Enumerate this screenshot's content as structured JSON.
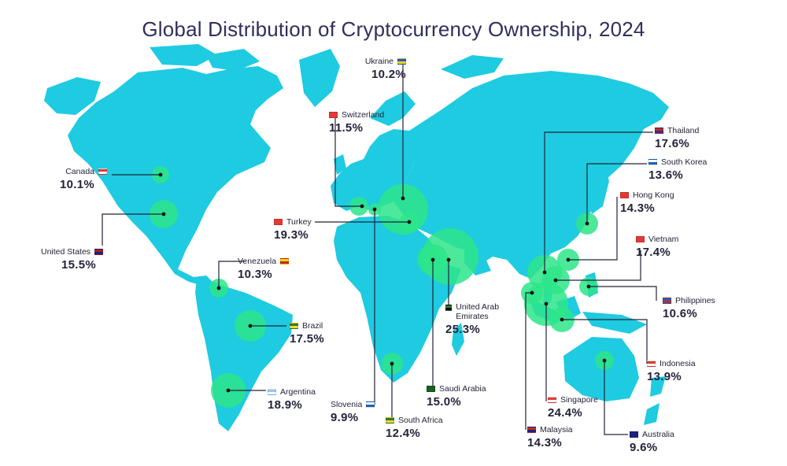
{
  "title": "Global Distribution of Cryptocurrency Ownership, 2024",
  "colors": {
    "land": "#1ecbe1",
    "bubble": "#2ee58a",
    "leader": "#23233a",
    "title": "#2f2f5e"
  },
  "countries": [
    {
      "id": "ukraine",
      "name": "Ukraine",
      "value": "10.2%",
      "flag": [
        "#1c5bd8",
        "#ffd500"
      ]
    },
    {
      "id": "switzerland",
      "name": "Switzerland",
      "value": "11.5%",
      "flag": [
        "#e53935",
        "#e53935"
      ]
    },
    {
      "id": "canada",
      "name": "Canada",
      "value": "10.1%",
      "flag": [
        "#e53935",
        "#ffffff"
      ]
    },
    {
      "id": "united-states",
      "name": "United States",
      "value": "15.5%",
      "flag": [
        "#b71c1c",
        "#1a237e"
      ]
    },
    {
      "id": "turkey",
      "name": "Turkey",
      "value": "19.3%",
      "flag": [
        "#e53935",
        "#e53935"
      ]
    },
    {
      "id": "venezuela",
      "name": "Venezuela",
      "value": "10.3%",
      "flag": [
        "#ffd600",
        "#c62828"
      ]
    },
    {
      "id": "brazil",
      "name": "Brazil",
      "value": "17.5%",
      "flag": [
        "#2e7d32",
        "#fdd835"
      ]
    },
    {
      "id": "argentina",
      "name": "Argentina",
      "value": "18.9%",
      "flag": [
        "#90caf9",
        "#ffffff"
      ]
    },
    {
      "id": "slovenia",
      "name": "Slovenia",
      "value": "9.9%",
      "flag": [
        "#ffffff",
        "#1565c0"
      ]
    },
    {
      "id": "south-africa",
      "name": "South Africa",
      "value": "12.4%",
      "flag": [
        "#2e7d32",
        "#fdd835"
      ]
    },
    {
      "id": "saudi-arabia",
      "name": "Saudi Arabia",
      "value": "15.0%",
      "flag": [
        "#1b5e20",
        "#1b5e20"
      ]
    },
    {
      "id": "uae",
      "name": "United Arab Emirates",
      "value": "25.3%",
      "flag": [
        "#2e7d32",
        "#000000"
      ]
    },
    {
      "id": "thailand",
      "name": "Thailand",
      "value": "17.6%",
      "flag": [
        "#c62828",
        "#283593"
      ]
    },
    {
      "id": "south-korea",
      "name": "South Korea",
      "value": "13.6%",
      "flag": [
        "#ffffff",
        "#1565c0"
      ]
    },
    {
      "id": "hong-kong",
      "name": "Hong Kong",
      "value": "14.3%",
      "flag": [
        "#e53935",
        "#e53935"
      ]
    },
    {
      "id": "vietnam",
      "name": "Vietnam",
      "value": "17.4%",
      "flag": [
        "#e53935",
        "#e53935"
      ]
    },
    {
      "id": "philippines",
      "name": "Philippines",
      "value": "10.6%",
      "flag": [
        "#1565c0",
        "#c62828"
      ]
    },
    {
      "id": "indonesia",
      "name": "Indonesia",
      "value": "13.9%",
      "flag": [
        "#e53935",
        "#ffffff"
      ]
    },
    {
      "id": "singapore",
      "name": "Singapore",
      "value": "24.4%",
      "flag": [
        "#e53935",
        "#ffffff"
      ]
    },
    {
      "id": "malaysia",
      "name": "Malaysia",
      "value": "14.3%",
      "flag": [
        "#c62828",
        "#1a237e"
      ]
    },
    {
      "id": "australia",
      "name": "Australia",
      "value": "9.6%",
      "flag": [
        "#1a237e",
        "#1a237e"
      ]
    }
  ]
}
